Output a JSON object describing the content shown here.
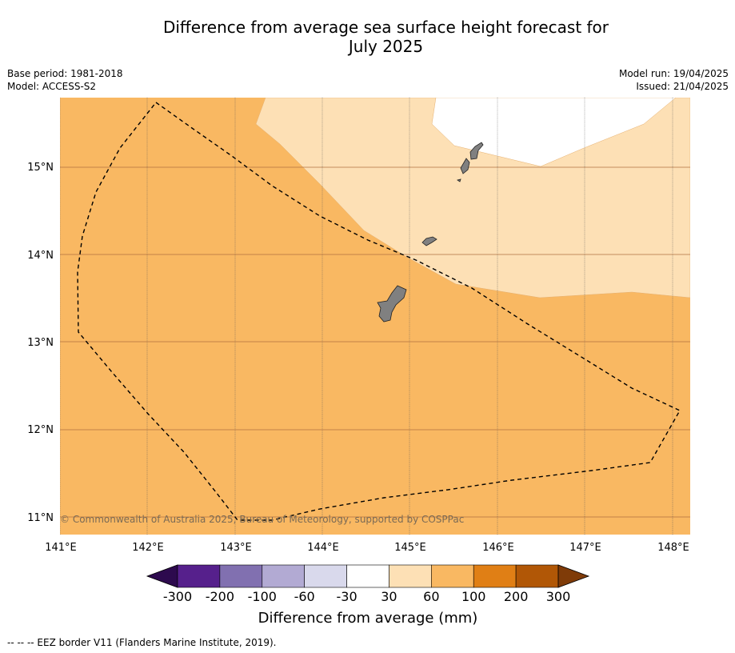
{
  "title_line1": "Difference from average sea surface height forecast for",
  "title_line2": "July 2025",
  "left_info": {
    "base_period": "Base period: 1981-2018",
    "model": "Model: ACCESS-S2"
  },
  "right_info": {
    "model_run": "Model run: 19/04/2025",
    "issued": "Issued: 21/04/2025"
  },
  "copyright": "© Commonwealth of Australia 2025, Bureau of Meteorology, supported by COSPPac",
  "footer_note": "--  --  -- EEZ border V11 (Flanders Marine Institute, 2019).",
  "map": {
    "lon_ticks": [
      "141°E",
      "142°E",
      "143°E",
      "144°E",
      "145°E",
      "146°E",
      "147°E",
      "148°E"
    ],
    "lat_ticks": [
      "15°N",
      "14°N",
      "13°N",
      "12°N",
      "11°N"
    ]
  },
  "colorbar": {
    "label": "Difference from average (mm)",
    "tick_labels": [
      "-300",
      "-200",
      "-100",
      "-60",
      "-30",
      "30",
      "60",
      "100",
      "200",
      "300"
    ],
    "colors": [
      "#2d0a4e",
      "#56208c",
      "#8170b0",
      "#b2aad3",
      "#d9d9ec",
      "#ffffff",
      "#fde0b5",
      "#f9b862",
      "#e07f15",
      "#b15706",
      "#7f3b08"
    ]
  },
  "colors": {
    "band_30_60": "#fde0b5",
    "band_60_100": "#f9b862",
    "land": "#808080"
  }
}
